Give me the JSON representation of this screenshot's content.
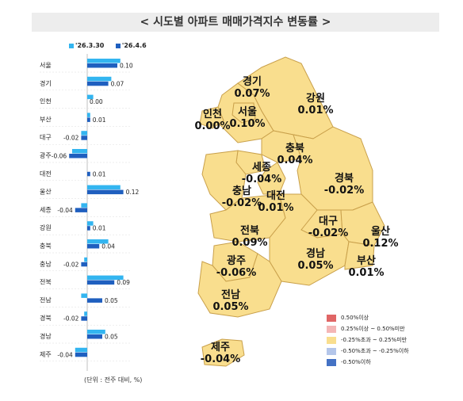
{
  "title": "< 시도별 아파트 매매가격지수 변동률 >",
  "legend": [
    {
      "name": "'26.3.30",
      "color": "#33b5f0"
    },
    {
      "name": "'26.4.6",
      "color": "#1f5fbf"
    }
  ],
  "unit_note": "(단위 : 전주 대비, %)",
  "chart_data": {
    "type": "bar",
    "orientation": "horizontal",
    "categories": [
      "서울",
      "경기",
      "인천",
      "부산",
      "대구",
      "광주",
      "대전",
      "울산",
      "세종",
      "강원",
      "충북",
      "충남",
      "전북",
      "전남",
      "경북",
      "경남",
      "제주"
    ],
    "series": [
      {
        "name": "'26.3.30",
        "values": [
          0.11,
          0.08,
          0.02,
          0.01,
          -0.02,
          -0.05,
          0.0,
          0.11,
          -0.02,
          0.02,
          0.07,
          -0.01,
          0.12,
          -0.02,
          -0.01,
          0.06,
          -0.04
        ]
      },
      {
        "name": "'26.4.6",
        "values": [
          0.1,
          0.07,
          0.0,
          0.01,
          -0.02,
          -0.06,
          0.01,
          0.12,
          -0.04,
          0.01,
          0.04,
          -0.02,
          0.09,
          0.05,
          -0.02,
          0.05,
          -0.04
        ]
      }
    ],
    "data_labels": [
      "0.10",
      "0.07",
      "0.00",
      "0.01",
      "-0.02",
      "-0.06",
      "0.01",
      "0.12",
      "-0.04",
      "0.01",
      "0.04",
      "-0.02",
      "0.09",
      "0.05",
      "-0.02",
      "0.05",
      "-0.04"
    ]
  },
  "map": {
    "regions": [
      {
        "name": "경기",
        "value": "0.07%"
      },
      {
        "name": "강원",
        "value": "0.01%"
      },
      {
        "name": "인천",
        "value": "0.00%"
      },
      {
        "name": "서울",
        "value": "0.10%"
      },
      {
        "name": "충북",
        "value": "0.04%"
      },
      {
        "name": "세종",
        "value": "-0.04%"
      },
      {
        "name": "경북",
        "value": "-0.02%"
      },
      {
        "name": "충남",
        "value": "-0.02%"
      },
      {
        "name": "대전",
        "value": "0.01%"
      },
      {
        "name": "대구",
        "value": "-0.02%"
      },
      {
        "name": "울산",
        "value": "0.12%"
      },
      {
        "name": "전북",
        "value": "0.09%"
      },
      {
        "name": "경남",
        "value": "0.05%"
      },
      {
        "name": "부산",
        "value": "0.01%"
      },
      {
        "name": "광주",
        "value": "-0.06%"
      },
      {
        "name": "전남",
        "value": "0.05%"
      },
      {
        "name": "제주",
        "value": "-0.04%"
      }
    ],
    "fill_color": "#f9de8e",
    "border_color": "#c9a04b",
    "legend": [
      {
        "label": "0.50%이상",
        "color": "#e06666"
      },
      {
        "label": "0.25%이상 ~ 0.50%미만",
        "color": "#f4b6b6"
      },
      {
        "label": "-0.25%초과 ~ 0.25%미만",
        "color": "#f9de8e"
      },
      {
        "label": "-0.50%초과 ~ -0.25%이하",
        "color": "#b4c6ea"
      },
      {
        "label": "-0.50%이하",
        "color": "#4472c4"
      }
    ]
  }
}
